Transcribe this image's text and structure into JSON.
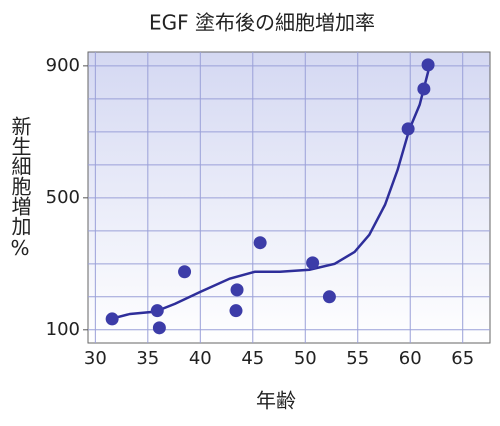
{
  "chart_data": {
    "type": "scatter",
    "title": "EGF 塗布後の細胞増加率",
    "x_label": "年齢",
    "y_label": "新生細胞増加%",
    "x": [
      31.6,
      35.9,
      36.1,
      38.5,
      43.5,
      43.4,
      45.7,
      50.7,
      52.3,
      59.8,
      61.3,
      61.7
    ],
    "values": [
      133,
      158,
      106,
      276,
      221,
      158,
      364,
      303,
      200,
      709,
      830,
      903
    ],
    "color": "#3c3ca8",
    "trend": {
      "x": [
        31.1,
        33.3,
        35.7,
        37.6,
        40.0,
        42.8,
        45.2,
        47.6,
        50.4,
        52.8,
        54.7,
        56.1,
        57.6,
        58.8,
        59.9,
        60.9,
        61.8
      ],
      "values": [
        130,
        148,
        155,
        179,
        215,
        255,
        276,
        276,
        282,
        300,
        336,
        388,
        479,
        585,
        706,
        782,
        894
      ],
      "color": "#2e2e9a"
    },
    "xlim": [
      29.3,
      67.6
    ],
    "ylim": [
      60,
      942
    ],
    "xticks": [
      30,
      35,
      40,
      45,
      50,
      55,
      60,
      65
    ],
    "yticks": [
      100,
      500,
      900
    ],
    "ygrid": [
      100,
      200,
      300,
      400,
      500,
      600,
      700,
      800,
      900
    ],
    "grid": true
  }
}
